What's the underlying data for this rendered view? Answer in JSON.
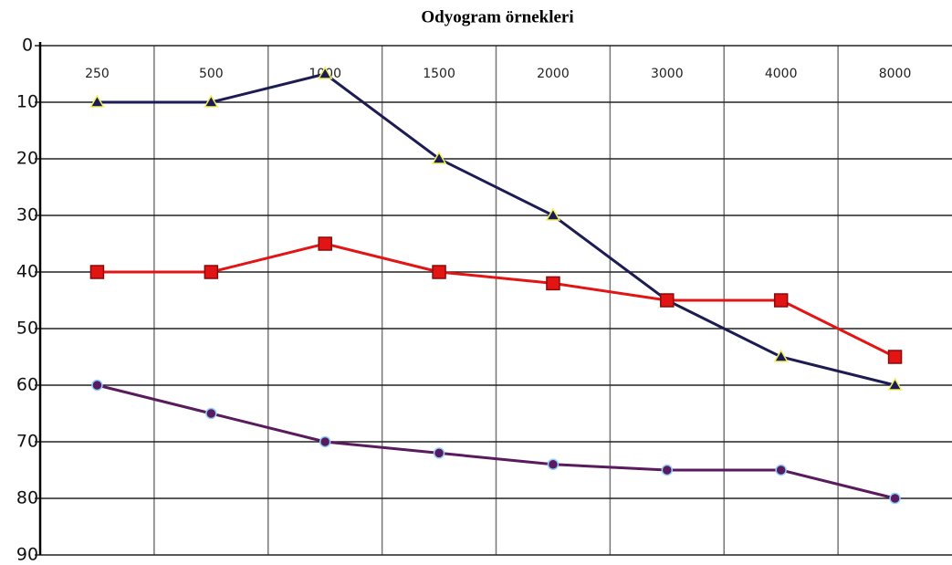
{
  "chart_data": {
    "type": "line",
    "title": "Odyogram örnekleri",
    "categories": [
      "250",
      "500",
      "1000",
      "1500",
      "2000",
      "3000",
      "4000",
      "8000"
    ],
    "series": [
      {
        "color": "#1c1c52",
        "marker": "triangle",
        "marker_edge": "#f0f060",
        "values": [
          10,
          10,
          5,
          20,
          30,
          45,
          55,
          60
        ]
      },
      {
        "color": "#e31414",
        "marker": "square",
        "marker_edge": "#8a0a0a",
        "values": [
          40,
          40,
          35,
          40,
          42,
          45,
          45,
          55
        ]
      },
      {
        "color": "#5a1a5e",
        "marker": "circle",
        "marker_edge": "#8fd0ff",
        "values": [
          60,
          65,
          70,
          72,
          74,
          75,
          75,
          80
        ]
      }
    ],
    "ylim": [
      0,
      90
    ],
    "yticks": [
      0,
      10,
      20,
      30,
      40,
      50,
      60,
      70,
      80,
      90
    ],
    "y_inverted": true,
    "grid": true
  }
}
